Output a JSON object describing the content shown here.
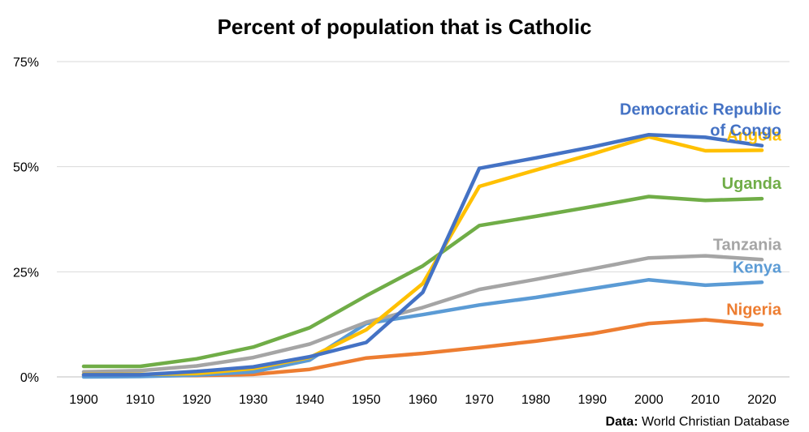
{
  "chart_data": {
    "type": "line",
    "title": "Percent of population that is Catholic",
    "source_label": "Data:",
    "source_text": "World Christian Database",
    "x": [
      1900,
      1910,
      1920,
      1930,
      1940,
      1950,
      1960,
      1970,
      1980,
      1990,
      2000,
      2010,
      2020
    ],
    "xlim": [
      1900,
      2020
    ],
    "ylim": [
      0,
      75
    ],
    "y_ticks": [
      {
        "value": 0,
        "label": "0%"
      },
      {
        "value": 25,
        "label": "25%"
      },
      {
        "value": 50,
        "label": "50%"
      },
      {
        "value": 75,
        "label": "75%"
      }
    ],
    "grid": true,
    "legend": "inline labels at right end of lines",
    "series": [
      {
        "name": "Nigeria",
        "label_lines": [
          "Nigeria"
        ],
        "color": "#ED7D31",
        "values": [
          0.3,
          0.3,
          0.3,
          0.6,
          1.8,
          4.5,
          5.6,
          7.0,
          8.5,
          10.3,
          12.7,
          13.6,
          12.4
        ]
      },
      {
        "name": "Kenya",
        "label_lines": [
          "Kenya"
        ],
        "color": "#5B9BD5",
        "values": [
          0.0,
          0.1,
          0.4,
          1.2,
          4.0,
          12.7,
          14.8,
          17.1,
          18.9,
          21.0,
          23.1,
          21.8,
          22.5
        ]
      },
      {
        "name": "Tanzania",
        "label_lines": [
          "Tanzania"
        ],
        "color": "#A5A5A5",
        "values": [
          1.2,
          1.5,
          2.6,
          4.6,
          7.8,
          13.0,
          16.5,
          20.8,
          23.2,
          25.7,
          28.3,
          28.8,
          27.9
        ]
      },
      {
        "name": "Uganda",
        "label_lines": [
          "Uganda"
        ],
        "color": "#70AD47",
        "values": [
          2.5,
          2.5,
          4.3,
          7.1,
          11.7,
          19.3,
          26.4,
          36.0,
          38.2,
          40.5,
          42.9,
          42.0,
          42.4
        ]
      },
      {
        "name": "Angola",
        "label_lines": [
          "Angola"
        ],
        "color": "#FFC000",
        "values": [
          0.6,
          0.6,
          0.8,
          2.0,
          4.6,
          11.2,
          22.2,
          45.3,
          49.2,
          53.0,
          57.1,
          53.8,
          53.9
        ]
      },
      {
        "name": "Democratic Republic of Congo",
        "label_lines": [
          "Democratic Republic",
          "of Congo"
        ],
        "color": "#4472C4",
        "values": [
          0.5,
          0.5,
          1.3,
          2.4,
          4.8,
          8.2,
          20.1,
          49.6,
          52.1,
          54.7,
          57.6,
          57.0,
          55.0
        ]
      }
    ]
  }
}
